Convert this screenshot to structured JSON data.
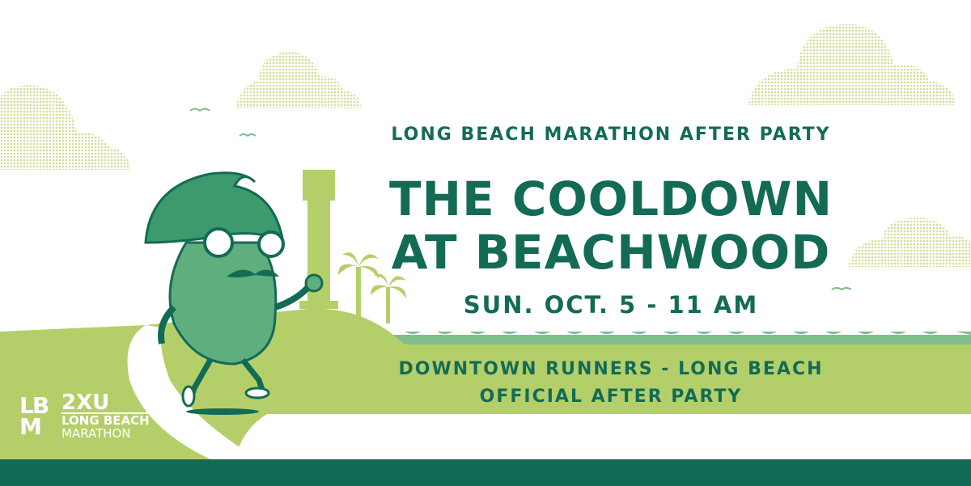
{
  "event": {
    "kicker": "LONG BEACH MARATHON AFTER PARTY",
    "title_line1": "THE COOLDOWN",
    "title_line2": "AT BEACHWOOD",
    "datetime": "SUN. OCT. 5 - 11 AM",
    "host_line1": "DOWNTOWN RUNNERS - LONG BEACH",
    "host_line2": "OFFICIAL AFTER PARTY"
  },
  "logo": {
    "mark": "LB M",
    "brand": "2XU",
    "line1": "LONG BEACH",
    "line2": "MARATHON"
  },
  "colors": {
    "dark_green": "#136b56",
    "light_green": "#b4cf6a",
    "water_green": "#7fbf8c",
    "cloud_green": "#dfe9b4"
  }
}
